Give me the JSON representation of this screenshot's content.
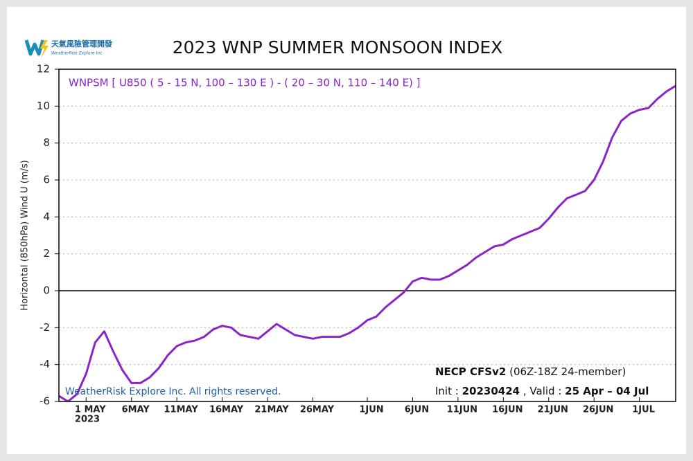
{
  "chart_data": {
    "type": "line",
    "title": "2023 WNP SUMMER MONSOON INDEX",
    "logo": {
      "name": "天氣風險管理開發",
      "company": "WeatherRisk Explore Inc."
    },
    "y_label": "Horizontal (850hPa) Wind  U (m/s)",
    "year_label": "2023",
    "copyright": "WeatherRisk Explore Inc. All rights reserved.",
    "source": {
      "model": "NECP CFSv2",
      "members": "(06Z-18Z 24-member)"
    },
    "run": {
      "init_label": "Init :",
      "init": "20230424",
      "valid_label": ", Valid :",
      "valid": "25 Apr –  04 Jul"
    },
    "x": [
      "2023-04-28",
      "2023-04-29",
      "2023-04-30",
      "2023-05-01",
      "2023-05-02",
      "2023-05-03",
      "2023-05-04",
      "2023-05-05",
      "2023-05-06",
      "2023-05-07",
      "2023-05-08",
      "2023-05-09",
      "2023-05-10",
      "2023-05-11",
      "2023-05-12",
      "2023-05-13",
      "2023-05-14",
      "2023-05-15",
      "2023-05-16",
      "2023-05-17",
      "2023-05-18",
      "2023-05-19",
      "2023-05-20",
      "2023-05-21",
      "2023-05-22",
      "2023-05-23",
      "2023-05-24",
      "2023-05-25",
      "2023-05-26",
      "2023-05-27",
      "2023-05-28",
      "2023-05-29",
      "2023-05-30",
      "2023-05-31",
      "2023-06-01",
      "2023-06-02",
      "2023-06-03",
      "2023-06-04",
      "2023-06-05",
      "2023-06-06",
      "2023-06-07",
      "2023-06-08",
      "2023-06-09",
      "2023-06-10",
      "2023-06-11",
      "2023-06-12",
      "2023-06-13",
      "2023-06-14",
      "2023-06-15",
      "2023-06-16",
      "2023-06-17",
      "2023-06-18",
      "2023-06-19",
      "2023-06-20",
      "2023-06-21",
      "2023-06-22",
      "2023-06-23",
      "2023-06-24",
      "2023-06-25",
      "2023-06-26",
      "2023-06-27",
      "2023-06-28",
      "2023-06-29",
      "2023-06-30",
      "2023-07-01",
      "2023-07-02",
      "2023-07-03",
      "2023-07-04",
      "2023-07-05"
    ],
    "series": [
      {
        "name": "WNPSM [ U850 ( 5 - 15 N, 100 – 130 E ) - ( 20 – 30 N, 110 – 140 E) ]",
        "color": "#8a24c8",
        "values": [
          -5.7,
          -6.0,
          -5.6,
          -4.5,
          -2.8,
          -2.2,
          -3.3,
          -4.3,
          -5.0,
          -5.0,
          -4.7,
          -4.2,
          -3.5,
          -3.0,
          -2.8,
          -2.7,
          -2.5,
          -2.1,
          -1.9,
          -2.0,
          -2.4,
          -2.5,
          -2.6,
          -2.2,
          -1.8,
          -2.1,
          -2.4,
          -2.5,
          -2.6,
          -2.5,
          -2.5,
          -2.5,
          -2.3,
          -2.0,
          -1.6,
          -1.4,
          -0.9,
          -0.5,
          -0.1,
          0.5,
          0.7,
          0.6,
          0.6,
          0.8,
          1.1,
          1.4,
          1.8,
          2.1,
          2.4,
          2.5,
          2.8,
          3.0,
          3.2,
          3.4,
          3.9,
          4.5,
          5.0,
          5.2,
          5.4,
          6.0,
          7.0,
          8.3,
          9.2,
          9.6,
          9.8,
          9.9,
          10.4,
          10.8,
          11.1
        ]
      }
    ],
    "xlim": [
      "2023-04-28",
      "2023-07-05"
    ],
    "xticks": [
      {
        "value": "2023-05-01",
        "label": "1 MAY"
      },
      {
        "value": "2023-05-06",
        "label": "6MAY"
      },
      {
        "value": "2023-05-11",
        "label": "11MAY"
      },
      {
        "value": "2023-05-16",
        "label": "16MAY"
      },
      {
        "value": "2023-05-21",
        "label": "21MAY"
      },
      {
        "value": "2023-05-26",
        "label": "26MAY"
      },
      {
        "value": "2023-06-01",
        "label": "1JUN"
      },
      {
        "value": "2023-06-06",
        "label": "6JUN"
      },
      {
        "value": "2023-06-11",
        "label": "11JUN"
      },
      {
        "value": "2023-06-16",
        "label": "16JUN"
      },
      {
        "value": "2023-06-21",
        "label": "21JUN"
      },
      {
        "value": "2023-06-26",
        "label": "26JUN"
      },
      {
        "value": "2023-07-01",
        "label": "1JUL"
      }
    ],
    "ylim": [
      -6,
      12
    ],
    "yticks": [
      -6,
      -4,
      -2,
      0,
      2,
      4,
      6,
      8,
      10,
      12
    ],
    "grid": true
  }
}
